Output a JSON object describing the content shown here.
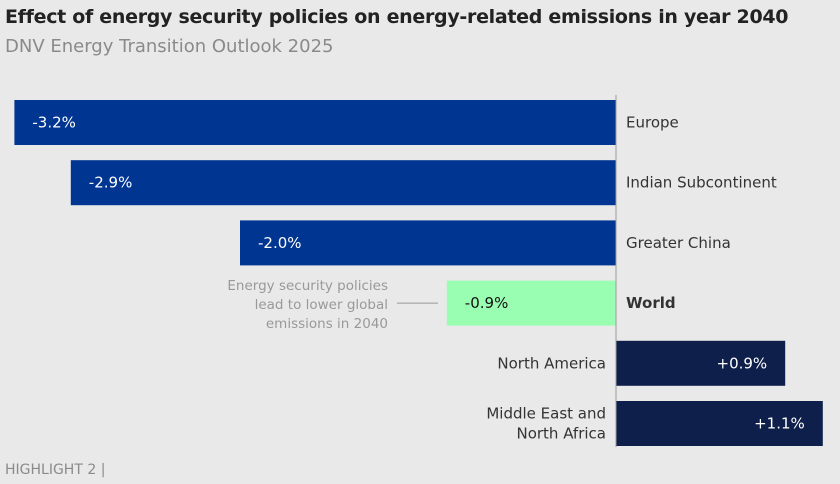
{
  "title": "Effect of energy security policies on energy-related emissions in year 2040",
  "subtitle": "DNV Energy Transition Outlook 2025",
  "footer": "HIGHLIGHT 2 |",
  "colors": {
    "negative": "#003591",
    "world": "#99fdb2",
    "positive": "#0f1f4b",
    "background": "#e9e9e9"
  },
  "chart_data": {
    "type": "bar",
    "orientation": "horizontal",
    "title": "Effect of energy security policies on energy-related emissions in year 2040",
    "subtitle": "DNV Energy Transition Outlook 2025",
    "unit": "%",
    "categories": [
      "Europe",
      "Indian Subcontinent",
      "Greater China",
      "World",
      "North America",
      "Middle East and North Africa"
    ],
    "values": [
      -3.2,
      -2.9,
      -2.0,
      -0.9,
      0.9,
      1.1
    ],
    "labels": [
      "-3.2%",
      "-2.9%",
      "-2.0%",
      "-0.9%",
      "+0.9%",
      "+1.1%"
    ],
    "highlight": "World",
    "xlim": [
      -3.2,
      1.1
    ],
    "grid": false,
    "annotation": [
      "Energy security policies",
      "lead to lower global",
      "emissions in 2040"
    ]
  }
}
